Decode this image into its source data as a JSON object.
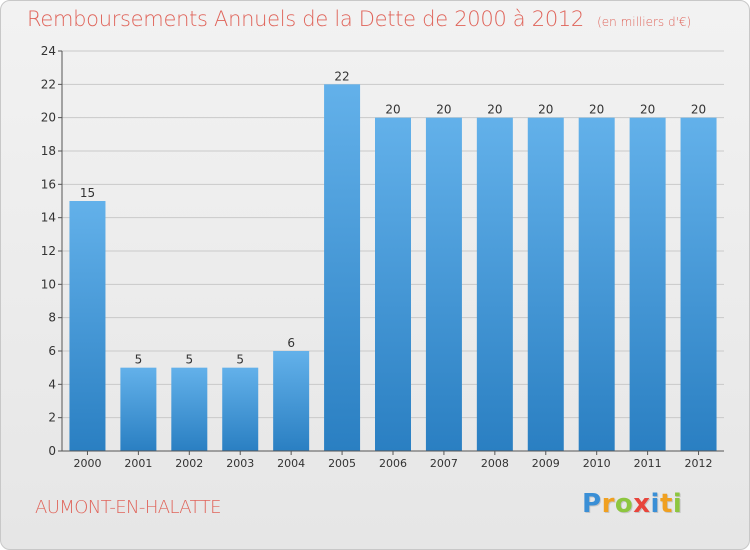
{
  "title": "Remboursements Annuels de la Dette de 2000 à 2012",
  "unit_note": "(en milliers d'€)",
  "commune": "AUMONT-EN-HALATTE",
  "logo": {
    "text": "Proxiti",
    "letters": [
      {
        "ch": "P",
        "color": "#3a8fd6"
      },
      {
        "ch": "r",
        "color": "#f0a020"
      },
      {
        "ch": "o",
        "color": "#8dc63f"
      },
      {
        "ch": "x",
        "color": "#e8453c"
      },
      {
        "ch": "i",
        "color": "#3a8fd6"
      },
      {
        "ch": "t",
        "color": "#f0a020"
      },
      {
        "ch": "i",
        "color": "#8dc63f"
      }
    ]
  },
  "colors": {
    "title": "#e0645a",
    "bar_top": "#63b1ea",
    "bar_bottom": "#2a7fc2",
    "grid": "#c9c9c9",
    "axis_text": "#333333"
  },
  "chart_data": {
    "type": "bar",
    "title": "Remboursements Annuels de la Dette de 2000 à 2012",
    "subtitle": "(en milliers d'€)",
    "categories": [
      "2000",
      "2001",
      "2002",
      "2003",
      "2004",
      "2005",
      "2006",
      "2007",
      "2008",
      "2009",
      "2010",
      "2011",
      "2012"
    ],
    "values": [
      15,
      5,
      5,
      5,
      6,
      22,
      20,
      20,
      20,
      20,
      20,
      20,
      20
    ],
    "data_labels": [
      "15",
      "5",
      "5",
      "5",
      "6",
      "22",
      "20",
      "20",
      "20",
      "20",
      "20",
      "20",
      "20"
    ],
    "ylim": [
      0,
      24
    ],
    "yticks": [
      0,
      2,
      4,
      6,
      8,
      10,
      12,
      14,
      16,
      18,
      20,
      22,
      24
    ],
    "grid": true,
    "xlabel": "",
    "ylabel": ""
  }
}
